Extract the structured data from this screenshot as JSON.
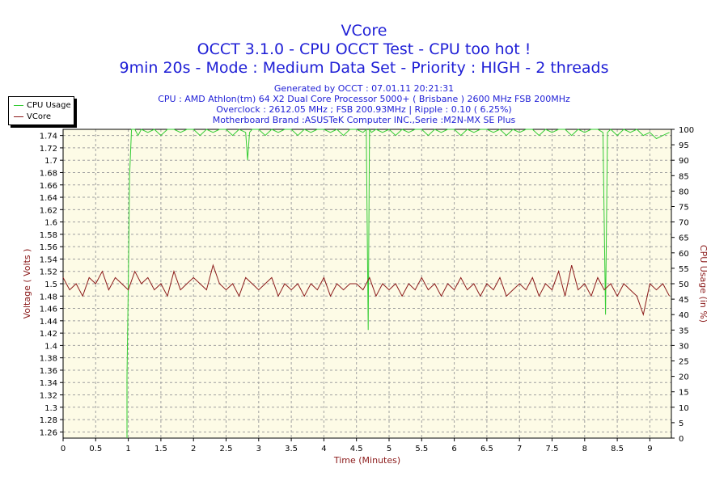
{
  "titles": {
    "line1": "VCore",
    "line2": "OCCT 3.1.0 - CPU OCCT Test - CPU too hot !",
    "line3": "9min 20s - Mode : Medium Data Set - Priority : HIGH - 2 threads"
  },
  "info": {
    "generated": "Generated by OCCT : 07.01.11 20:21:31",
    "cpu": "CPU : AMD Athlon(tm) 64 X2 Dual Core Processor 5000+ ( Brisbane ) 2600 MHz FSB 200MHz",
    "overclock": "Overclock : 2612.05 MHz ; FSB 200.93MHz | Ripple : 0.10 ( 6.25%)",
    "motherboard": "Motherboard Brand :ASUSTeK Computer INC.,Serie :M2N-MX SE Plus"
  },
  "legend": {
    "items": [
      {
        "label": "CPU Usage",
        "color": "#33cc33"
      },
      {
        "label": "VCore",
        "color": "#8b1a1a"
      }
    ]
  },
  "colors": {
    "plot_background": "#fdfbe6",
    "grid": "#a0a0a0",
    "cpu_line": "#33cc33",
    "vcore_line": "#8b1a1a",
    "title_text": "#1f1fd6",
    "axis_label_text": "#8b1a1a"
  },
  "chart_data": {
    "type": "line",
    "xlabel": "Time (Minutes)",
    "ylabel": "Voltage ( Volts )",
    "y2label": "CPU Usage (in %)",
    "xlim": [
      0,
      9.33
    ],
    "ylim": [
      1.25,
      1.75
    ],
    "y2lim": [
      0,
      100
    ],
    "grid": true,
    "legend_position": "top-left",
    "x_ticks": [
      "0",
      "0.5",
      "1",
      "1.5",
      "2",
      "2.5",
      "3",
      "3.5",
      "4",
      "4.5",
      "5",
      "5.5",
      "6",
      "6.5",
      "7",
      "7.5",
      "8",
      "8.5",
      "9"
    ],
    "x_tick_values": [
      0,
      0.5,
      1,
      1.5,
      2,
      2.5,
      3,
      3.5,
      4,
      4.5,
      5,
      5.5,
      6,
      6.5,
      7,
      7.5,
      8,
      8.5,
      9
    ],
    "y_ticks": [
      "1.26",
      "1.28",
      "1.3",
      "1.32",
      "1.34",
      "1.36",
      "1.38",
      "1.4",
      "1.42",
      "1.44",
      "1.46",
      "1.48",
      "1.5",
      "1.52",
      "1.54",
      "1.56",
      "1.58",
      "1.6",
      "1.62",
      "1.64",
      "1.66",
      "1.68",
      "1.7",
      "1.72",
      "1.74"
    ],
    "y_tick_values": [
      1.26,
      1.28,
      1.3,
      1.32,
      1.34,
      1.36,
      1.38,
      1.4,
      1.42,
      1.44,
      1.46,
      1.48,
      1.5,
      1.52,
      1.54,
      1.56,
      1.58,
      1.6,
      1.62,
      1.64,
      1.66,
      1.68,
      1.7,
      1.72,
      1.74
    ],
    "y2_ticks": [
      "0",
      "5",
      "10",
      "15",
      "20",
      "25",
      "30",
      "35",
      "40",
      "45",
      "50",
      "55",
      "60",
      "65",
      "70",
      "75",
      "80",
      "85",
      "90",
      "95",
      "100"
    ],
    "y2_tick_values": [
      0,
      5,
      10,
      15,
      20,
      25,
      30,
      35,
      40,
      45,
      50,
      55,
      60,
      65,
      70,
      75,
      80,
      85,
      90,
      95,
      100
    ],
    "series": [
      {
        "name": "CPU Usage",
        "axis": "right",
        "x": [
          0.98,
          0.98,
          1.0,
          1.02,
          1.05,
          1.1,
          1.15,
          1.2,
          1.3,
          1.4,
          1.5,
          1.6,
          1.7,
          1.8,
          1.9,
          2.0,
          2.1,
          2.2,
          2.3,
          2.4,
          2.5,
          2.6,
          2.7,
          2.8,
          2.83,
          2.86,
          2.9,
          3.0,
          3.1,
          3.2,
          3.3,
          3.4,
          3.5,
          3.6,
          3.7,
          3.8,
          3.9,
          4.0,
          4.1,
          4.2,
          4.3,
          4.4,
          4.5,
          4.6,
          4.65,
          4.68,
          4.7,
          4.73,
          4.8,
          4.9,
          5.0,
          5.1,
          5.2,
          5.3,
          5.4,
          5.5,
          5.6,
          5.7,
          5.8,
          5.9,
          6.0,
          6.1,
          6.2,
          6.3,
          6.4,
          6.5,
          6.6,
          6.7,
          6.8,
          6.9,
          7.0,
          7.1,
          7.2,
          7.3,
          7.4,
          7.5,
          7.6,
          7.7,
          7.8,
          7.9,
          8.0,
          8.1,
          8.2,
          8.28,
          8.32,
          8.35,
          8.4,
          8.5,
          8.6,
          8.7,
          8.8,
          8.9,
          9.0,
          9.1,
          9.2,
          9.3
        ],
        "values": [
          0,
          20,
          50,
          85,
          100,
          100,
          98,
          100,
          99,
          100,
          98,
          100,
          100,
          99,
          100,
          100,
          98,
          100,
          99,
          100,
          100,
          98,
          100,
          99,
          90,
          99,
          100,
          100,
          98,
          100,
          99,
          100,
          100,
          98,
          100,
          99,
          100,
          100,
          99,
          100,
          98,
          100,
          100,
          99,
          100,
          35,
          100,
          99,
          100,
          99,
          100,
          98,
          100,
          99,
          100,
          100,
          98,
          100,
          99,
          100,
          100,
          98,
          100,
          99,
          100,
          100,
          99,
          100,
          98,
          100,
          99,
          100,
          100,
          98,
          100,
          99,
          100,
          100,
          98,
          100,
          99,
          100,
          100,
          99,
          40,
          99,
          100,
          98,
          100,
          99,
          100,
          98,
          99,
          97,
          98,
          99
        ]
      },
      {
        "name": "VCore",
        "axis": "left",
        "x": [
          0,
          0.1,
          0.2,
          0.3,
          0.4,
          0.5,
          0.6,
          0.7,
          0.8,
          0.9,
          1.0,
          1.1,
          1.2,
          1.3,
          1.4,
          1.5,
          1.6,
          1.7,
          1.8,
          1.9,
          2.0,
          2.1,
          2.2,
          2.3,
          2.4,
          2.5,
          2.6,
          2.7,
          2.8,
          2.9,
          3.0,
          3.1,
          3.2,
          3.3,
          3.4,
          3.5,
          3.6,
          3.7,
          3.8,
          3.9,
          4.0,
          4.1,
          4.2,
          4.3,
          4.4,
          4.5,
          4.6,
          4.7,
          4.8,
          4.9,
          5.0,
          5.1,
          5.2,
          5.3,
          5.4,
          5.5,
          5.6,
          5.7,
          5.8,
          5.9,
          6.0,
          6.1,
          6.2,
          6.3,
          6.4,
          6.5,
          6.6,
          6.7,
          6.8,
          6.9,
          7.0,
          7.1,
          7.2,
          7.3,
          7.4,
          7.5,
          7.6,
          7.7,
          7.8,
          7.9,
          8.0,
          8.1,
          8.2,
          8.3,
          8.4,
          8.5,
          8.6,
          8.7,
          8.8,
          8.9,
          9.0,
          9.1,
          9.2,
          9.3
        ],
        "values": [
          1.51,
          1.49,
          1.5,
          1.48,
          1.51,
          1.5,
          1.52,
          1.49,
          1.51,
          1.5,
          1.49,
          1.52,
          1.5,
          1.51,
          1.49,
          1.5,
          1.48,
          1.52,
          1.49,
          1.5,
          1.51,
          1.5,
          1.49,
          1.53,
          1.5,
          1.49,
          1.5,
          1.48,
          1.51,
          1.5,
          1.49,
          1.5,
          1.51,
          1.48,
          1.5,
          1.49,
          1.5,
          1.48,
          1.5,
          1.49,
          1.51,
          1.48,
          1.5,
          1.49,
          1.5,
          1.5,
          1.49,
          1.51,
          1.48,
          1.5,
          1.49,
          1.5,
          1.48,
          1.5,
          1.49,
          1.51,
          1.49,
          1.5,
          1.48,
          1.5,
          1.49,
          1.51,
          1.49,
          1.5,
          1.48,
          1.5,
          1.49,
          1.51,
          1.48,
          1.49,
          1.5,
          1.49,
          1.51,
          1.48,
          1.5,
          1.49,
          1.52,
          1.48,
          1.53,
          1.49,
          1.5,
          1.48,
          1.51,
          1.49,
          1.5,
          1.48,
          1.5,
          1.49,
          1.48,
          1.45,
          1.5,
          1.49,
          1.5,
          1.48
        ]
      }
    ]
  }
}
